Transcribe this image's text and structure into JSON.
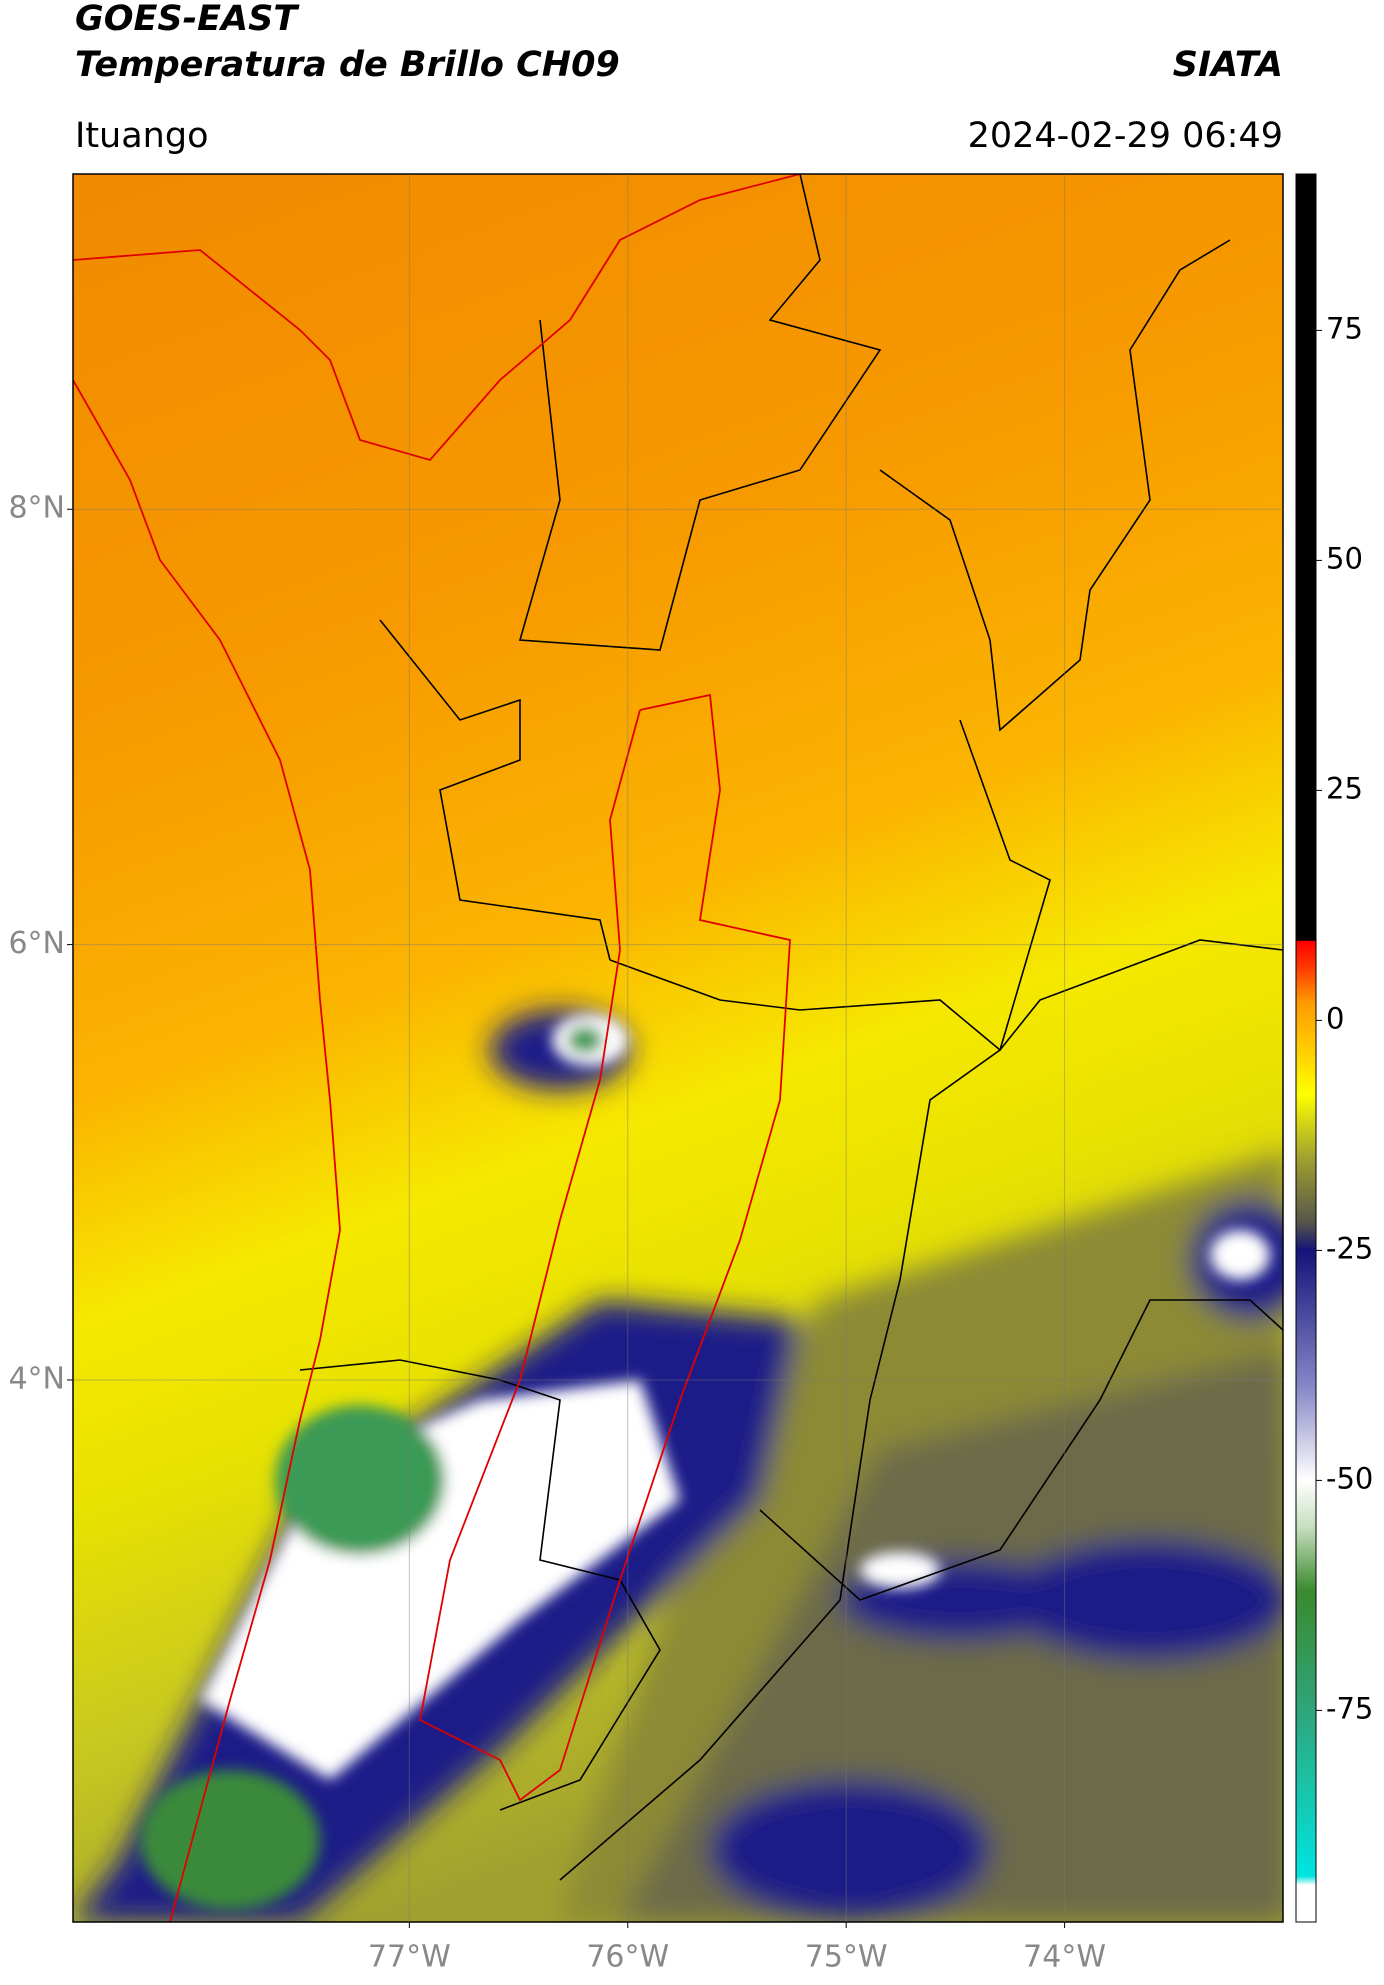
{
  "chart_data": {
    "type": "map",
    "title": "GOES-EAST",
    "subtitle": "Temperatura de Brillo CH09",
    "source": "SIATA",
    "location": "Ituango",
    "datetime": "2024-02-29 06:49",
    "xlim": [
      -78.54,
      -73.0
    ],
    "ylim": [
      1.51,
      9.54
    ],
    "xticks": [
      {
        "value": -77,
        "label": "77°W"
      },
      {
        "value": -76,
        "label": "76°W"
      },
      {
        "value": -75,
        "label": "75°W"
      },
      {
        "value": -74,
        "label": "74°W"
      }
    ],
    "yticks": [
      {
        "value": 8,
        "label": "8°N"
      },
      {
        "value": 6,
        "label": "6°N"
      },
      {
        "value": 4,
        "label": "4°N"
      }
    ],
    "grid": true,
    "colorbar": {
      "lim": [
        -98,
        92
      ],
      "ticks": [
        75,
        50,
        25,
        0,
        -25,
        -50,
        -75
      ],
      "stops": [
        {
          "value": -98,
          "color": "#ffffff"
        },
        {
          "value": -94,
          "color": "#ffffff"
        },
        {
          "value": -93,
          "color": "#00e5e0"
        },
        {
          "value": -75,
          "color": "#2fa57a"
        },
        {
          "value": -62,
          "color": "#3a8a2e"
        },
        {
          "value": -55,
          "color": "#c8dfc0"
        },
        {
          "value": -50,
          "color": "#ffffff"
        },
        {
          "value": -40,
          "color": "#8888c8"
        },
        {
          "value": -25,
          "color": "#14147a"
        },
        {
          "value": -22,
          "color": "#55554a"
        },
        {
          "value": -15,
          "color": "#a0a030"
        },
        {
          "value": -8,
          "color": "#ffff00"
        },
        {
          "value": 2,
          "color": "#ff9900"
        },
        {
          "value": 6,
          "color": "#ff3300"
        },
        {
          "value": 8.6,
          "color": "#ff0000"
        },
        {
          "value": 8.7,
          "color": "#000000"
        },
        {
          "value": 92,
          "color": "#000000"
        }
      ]
    }
  }
}
